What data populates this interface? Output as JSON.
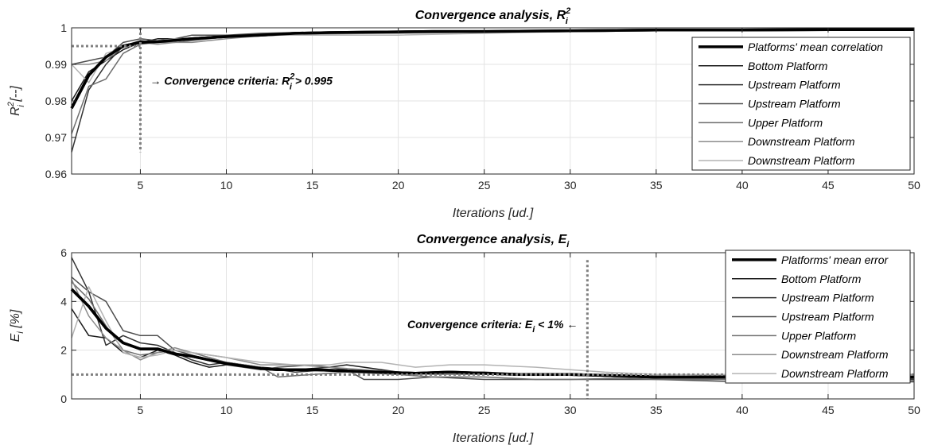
{
  "chart_data": [
    {
      "type": "line",
      "title": "Convergence analysis, R",
      "title_sup": "2",
      "title_sub": "i",
      "xlabel": "Iterations [ud.]",
      "ylabel": "R",
      "ylabel_sup": "2",
      "ylabel_sub": "i",
      "ylabel_unit": " [--]",
      "xlim": [
        1,
        50
      ],
      "ylim": [
        0.96,
        1
      ],
      "xticks": [
        "5",
        "10",
        "15",
        "20",
        "25",
        "30",
        "35",
        "40",
        "45",
        "50"
      ],
      "yticks": [
        "0.96",
        "0.97",
        "0.98",
        "0.99",
        "1"
      ],
      "grid": true,
      "legend_position": "top-right",
      "annotation": {
        "text": "→ Convergence criteria: R",
        "sup": "2",
        "sub": "i",
        "tail": " > 0.995",
        "threshold": 0.995,
        "iteration": 5
      },
      "series": [
        {
          "name": "Platforms' mean correlation",
          "color": "#000000",
          "width": 3.5,
          "x": [
            1,
            2,
            3,
            4,
            5,
            6,
            7,
            8,
            9,
            10,
            12,
            14,
            16,
            18,
            20,
            22,
            25,
            30,
            35,
            40,
            45,
            50
          ],
          "y": [
            0.978,
            0.987,
            0.992,
            0.995,
            0.996,
            0.9962,
            0.9966,
            0.997,
            0.9973,
            0.9976,
            0.998,
            0.9985,
            0.9987,
            0.9988,
            0.9989,
            0.999,
            0.999,
            0.9992,
            0.9994,
            0.9994,
            0.9995,
            0.9995
          ]
        },
        {
          "name": "Bottom Platform",
          "color": "#1a1a1a",
          "width": 1.5,
          "x": [
            1,
            2,
            3,
            4,
            5,
            6,
            7,
            8,
            10,
            12,
            15,
            20,
            25,
            30,
            35,
            40,
            45,
            50
          ],
          "y": [
            0.98,
            0.988,
            0.991,
            0.994,
            0.996,
            0.997,
            0.997,
            0.997,
            0.998,
            0.998,
            0.9985,
            0.999,
            0.999,
            0.9992,
            0.9994,
            0.9994,
            0.9995,
            0.9995
          ]
        },
        {
          "name": "Upstream Platform",
          "color": "#333333",
          "width": 1.5,
          "x": [
            1,
            2,
            3,
            4,
            5,
            6,
            7,
            8,
            10,
            12,
            15,
            20,
            25,
            30,
            35,
            40,
            45,
            50
          ],
          "y": [
            0.966,
            0.983,
            0.99,
            0.995,
            0.9965,
            0.996,
            0.997,
            0.9972,
            0.9978,
            0.998,
            0.9985,
            0.999,
            0.999,
            0.9992,
            0.9993,
            0.9994,
            0.9995,
            0.9995
          ]
        },
        {
          "name": "Upstream Platform",
          "color": "#4d4d4d",
          "width": 1.5,
          "x": [
            1,
            2,
            3,
            4,
            5,
            6,
            7,
            8,
            10,
            12,
            15,
            20,
            25,
            30,
            35,
            40,
            45,
            50
          ],
          "y": [
            0.99,
            0.991,
            0.992,
            0.996,
            0.997,
            0.9965,
            0.997,
            0.998,
            0.998,
            0.9985,
            0.9988,
            0.999,
            0.999,
            0.9992,
            0.9994,
            0.9994,
            0.9995,
            0.9995
          ]
        },
        {
          "name": "Upper Platform",
          "color": "#6e6e6e",
          "width": 1.5,
          "x": [
            1,
            2,
            3,
            4,
            5,
            6,
            7,
            8,
            10,
            12,
            15,
            20,
            25,
            30,
            35,
            40,
            45,
            50
          ],
          "y": [
            0.971,
            0.984,
            0.986,
            0.993,
            0.9955,
            0.996,
            0.996,
            0.9965,
            0.9975,
            0.998,
            0.9984,
            0.9988,
            0.999,
            0.9991,
            0.9993,
            0.9994,
            0.9994,
            0.9995
          ]
        },
        {
          "name": "Downstream Platform",
          "color": "#8c8c8c",
          "width": 1.5,
          "x": [
            1,
            2,
            3,
            4,
            5,
            6,
            7,
            8,
            10,
            12,
            15,
            20,
            25,
            30,
            35,
            40,
            45,
            50
          ],
          "y": [
            0.99,
            0.99,
            0.991,
            0.995,
            0.996,
            0.9955,
            0.996,
            0.996,
            0.997,
            0.9978,
            0.9983,
            0.9985,
            0.9988,
            0.999,
            0.9992,
            0.9993,
            0.9994,
            0.9994
          ]
        },
        {
          "name": "Downstream Platform",
          "color": "#b3b3b3",
          "width": 1.5,
          "x": [
            1,
            2,
            3,
            4,
            5,
            6,
            7,
            8,
            10,
            12,
            15,
            20,
            25,
            30,
            35,
            40,
            45,
            50
          ],
          "y": [
            0.99,
            0.985,
            0.993,
            0.9945,
            0.996,
            0.9965,
            0.997,
            0.997,
            0.9975,
            0.998,
            0.998,
            0.998,
            0.9985,
            0.999,
            0.9992,
            0.9993,
            0.9994,
            0.9994
          ]
        }
      ]
    },
    {
      "type": "line",
      "title": "Convergence analysis, E",
      "title_sup": "",
      "title_sub": "i",
      "xlabel": "Iterations [ud.]",
      "ylabel": "E",
      "ylabel_sup": "",
      "ylabel_sub": "i",
      "ylabel_unit": " [%]",
      "xlim": [
        1,
        50
      ],
      "ylim": [
        0,
        6
      ],
      "xticks": [
        "5",
        "10",
        "15",
        "20",
        "25",
        "30",
        "35",
        "40",
        "45",
        "50"
      ],
      "yticks": [
        "0",
        "2",
        "4",
        "6"
      ],
      "grid": true,
      "legend_position": "top-right",
      "annotation": {
        "text": "Convergence criteria: E",
        "sup": "",
        "sub": "i",
        "tail": " < 1% ←",
        "threshold": 1,
        "iteration": 31
      },
      "series": [
        {
          "name": "Platforms' mean error",
          "color": "#000000",
          "width": 3.5,
          "x": [
            1,
            2,
            3,
            4,
            5,
            6,
            7,
            8,
            9,
            10,
            11,
            12,
            13,
            14,
            15,
            17,
            19,
            21,
            23,
            25,
            27,
            30,
            33,
            35,
            38,
            40,
            45,
            50
          ],
          "y": [
            4.5,
            3.8,
            2.9,
            2.3,
            2.05,
            2.05,
            1.85,
            1.75,
            1.6,
            1.45,
            1.35,
            1.25,
            1.2,
            1.2,
            1.2,
            1.15,
            1.1,
            1.05,
            1.1,
            1.05,
            1.0,
            1.0,
            0.95,
            0.9,
            0.9,
            0.9,
            0.9,
            0.9
          ]
        },
        {
          "name": "Bottom Platform",
          "color": "#1a1a1a",
          "width": 1.5,
          "x": [
            1,
            2,
            3,
            4,
            5,
            6,
            7,
            8,
            9,
            10,
            12,
            14,
            16,
            17,
            18,
            20,
            22,
            25,
            28,
            30,
            33,
            35,
            40,
            45,
            50
          ],
          "y": [
            3.7,
            2.6,
            2.5,
            1.9,
            1.7,
            2.0,
            1.8,
            1.5,
            1.3,
            1.4,
            1.3,
            1.2,
            1.3,
            1.4,
            1.3,
            1.1,
            1.0,
            1.0,
            1.0,
            1.0,
            0.9,
            0.85,
            0.85,
            0.8,
            0.85
          ]
        },
        {
          "name": "Upstream Platform",
          "color": "#333333",
          "width": 1.5,
          "x": [
            1,
            2,
            3,
            4,
            5,
            6,
            7,
            8,
            9,
            10,
            12,
            14,
            16,
            18,
            20,
            22,
            25,
            28,
            30,
            33,
            35,
            40,
            45,
            50
          ],
          "y": [
            5.8,
            4.4,
            2.2,
            2.6,
            2.3,
            2.2,
            1.9,
            1.6,
            1.4,
            1.5,
            1.3,
            1.1,
            1.2,
            1.1,
            1.0,
            1.1,
            1.1,
            1.0,
            1.0,
            0.9,
            0.9,
            0.9,
            0.85,
            0.8
          ]
        },
        {
          "name": "Upstream Platform",
          "color": "#4d4d4d",
          "width": 1.5,
          "x": [
            1,
            2,
            3,
            4,
            5,
            6,
            7,
            8,
            9,
            10,
            12,
            13,
            15,
            17,
            18,
            20,
            22,
            25,
            28,
            30,
            33,
            35,
            40,
            45,
            50
          ],
          "y": [
            5.0,
            4.4,
            4.0,
            2.8,
            2.6,
            2.6,
            2.0,
            1.8,
            1.6,
            1.4,
            1.2,
            1.3,
            1.4,
            1.2,
            0.8,
            0.8,
            0.9,
            0.8,
            0.8,
            0.8,
            0.8,
            0.8,
            0.7,
            0.7,
            0.7
          ]
        },
        {
          "name": "Upper Platform",
          "color": "#6e6e6e",
          "width": 1.5,
          "x": [
            1,
            2,
            3,
            4,
            5,
            6,
            7,
            8,
            9,
            10,
            12,
            13,
            15,
            17,
            20,
            22,
            25,
            28,
            30,
            33,
            35,
            40,
            45,
            50
          ],
          "y": [
            4.8,
            4.1,
            3.0,
            2.0,
            1.8,
            1.9,
            2.0,
            1.9,
            1.7,
            1.5,
            1.3,
            0.9,
            1.0,
            1.1,
            1.0,
            0.9,
            0.9,
            0.8,
            0.8,
            0.85,
            0.8,
            0.8,
            0.75,
            0.75
          ]
        },
        {
          "name": "Downstream Platform",
          "color": "#8c8c8c",
          "width": 1.5,
          "x": [
            1,
            2,
            3,
            4,
            5,
            6,
            7,
            8,
            9,
            10,
            12,
            14,
            16,
            18,
            20,
            22,
            25,
            28,
            30,
            33,
            35,
            40,
            45,
            50
          ],
          "y": [
            4.9,
            3.4,
            2.5,
            2.0,
            1.6,
            1.9,
            2.1,
            1.9,
            1.8,
            1.7,
            1.4,
            1.4,
            1.3,
            1.2,
            1.1,
            1.0,
            1.0,
            1.0,
            1.0,
            0.9,
            0.9,
            1.0,
            1.1,
            1.0
          ]
        },
        {
          "name": "Downstream Platform",
          "color": "#b3b3b3",
          "width": 1.5,
          "x": [
            1,
            2,
            3,
            4,
            5,
            6,
            7,
            8,
            10,
            12,
            14,
            16,
            17,
            19,
            21,
            23,
            25,
            28,
            30,
            32,
            35,
            40,
            45,
            50
          ],
          "y": [
            2.5,
            4.6,
            3.2,
            1.9,
            1.7,
            1.8,
            2.0,
            1.9,
            1.7,
            1.5,
            1.4,
            1.4,
            1.5,
            1.5,
            1.3,
            1.4,
            1.4,
            1.3,
            1.2,
            1.1,
            1.0,
            1.0,
            0.9,
            0.9
          ]
        }
      ]
    }
  ]
}
